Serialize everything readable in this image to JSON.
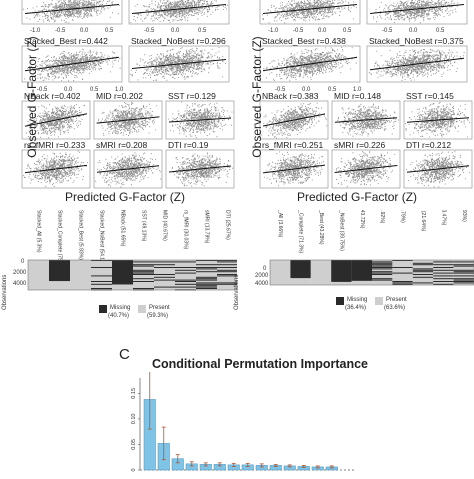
{
  "panels": {
    "left": {
      "ylabel": "Observed G-Factor (Z)",
      "xlabel": "Predicted G-Factor (Z)",
      "plots": [
        {
          "title": "",
          "r": ""
        },
        {
          "title": "",
          "r": ""
        },
        {
          "title": "Stacked_Best r=0.442",
          "r": 0.442
        },
        {
          "title": "Stacked_NoBest r=0.296",
          "r": 0.296
        },
        {
          "title": "NBack r=0.402",
          "r": 0.402
        },
        {
          "title": "MID r=0.202",
          "r": 0.202
        },
        {
          "title": "SST r=0.129",
          "r": 0.129
        },
        {
          "title": "rs_fMRI r=0.233",
          "r": 0.233
        },
        {
          "title": "sMRI r=0.208",
          "r": 0.208
        },
        {
          "title": "DTI r=0.19",
          "r": 0.19
        }
      ]
    },
    "right": {
      "ylabel": "Observed G-Factor (Z)",
      "xlabel": "Predicted G-Factor (Z)",
      "plots": [
        {
          "title": "",
          "r": ""
        },
        {
          "title": "",
          "r": ""
        },
        {
          "title": "Stacked_Best r=0.438",
          "r": 0.438
        },
        {
          "title": "Stacked_NoBest r=0.375",
          "r": 0.375
        },
        {
          "title": "NBack r=0.383",
          "r": 0.383
        },
        {
          "title": "MID r=0.148",
          "r": 0.148
        },
        {
          "title": "SST r=0.145",
          "r": 0.145
        },
        {
          "title": "rs_fMRI r=0.251",
          "r": 0.251
        },
        {
          "title": "sMRI r=0.226",
          "r": 0.226
        },
        {
          "title": "DTI r=0.212",
          "r": 0.212
        }
      ]
    }
  },
  "ticks": {
    "x_top": [
      "-1.0",
      "-0.5",
      "0.0",
      "0.5",
      "-0.5",
      "0.0",
      "0.5"
    ],
    "x_stacked": [
      "-0.5",
      "0.0",
      "0.5",
      "1.0"
    ]
  },
  "missing_maps": {
    "left": {
      "ylabel": "Observations",
      "yticks": [
        "0",
        "2000",
        "4000"
      ],
      "columns": [
        "Stacked_All (5.3%)",
        "Stacked_Complete (75.79%)",
        "Stacked_Best (5.83%)",
        "Stacked_NoBest (54.13%)",
        "NBack (51.65%)",
        "SST (49.13%)",
        "MID (40.67%)",
        "rs_fMRI (30.03%)",
        "sMRI (13.79%)",
        "DTI (25.67%)"
      ],
      "legend_missing": "Missing",
      "legend_missing_pct": "(40.7%)",
      "legend_present": "Present",
      "legend_present_pct": "(59.3%)"
    },
    "right": {
      "ylabel": "Observations",
      "yticks": [
        "0",
        "2000",
        "4000"
      ],
      "columns": [
        "Stacked_All (3.66%)",
        "Stacked_Complete (71.3%)",
        "Stacked_Best (43.28%)",
        "Stacked_NoBest (39.75%)",
        "NBack (43.72%)",
        "SST (45.92%)",
        "MID (44.79%)",
        "rs_fMRI (21.64%)",
        "sMRI (13.47%)",
        "DTI (26.93%)"
      ],
      "legend_missing": "Missing",
      "legend_missing_pct": "(36.4%)",
      "legend_present": "Present",
      "legend_present_pct": "(63.6%)"
    }
  },
  "panel_c": {
    "letter": "C",
    "title": "Conditional Permutation Importance",
    "yticks": [
      "0",
      "0.05",
      "0.10",
      "0.15"
    ]
  },
  "chart_data": {
    "type": "bar",
    "title": "Conditional Permutation Importance",
    "ylim": [
      0,
      0.18
    ],
    "values": [
      0.138,
      0.052,
      0.022,
      0.012,
      0.011,
      0.011,
      0.01,
      0.01,
      0.009,
      0.009,
      0.008,
      0.007,
      0.006,
      0.006
    ],
    "errors": [
      0.058,
      0.032,
      0.008,
      0.004,
      0.003,
      0.003,
      0.003,
      0.003,
      0.003,
      0.002,
      0.002,
      0.002,
      0.002,
      0.002
    ]
  },
  "colors": {
    "scatter_bg": "#ffffff",
    "scatter_points": "#8c8c8c",
    "fit_line": "#111111",
    "missing": "#2b2b2b",
    "present": "#cfcfcf",
    "bar_fill": "#7fc4e6",
    "bar_edge": "#4a90b8",
    "error_bar": "#b5542d"
  }
}
